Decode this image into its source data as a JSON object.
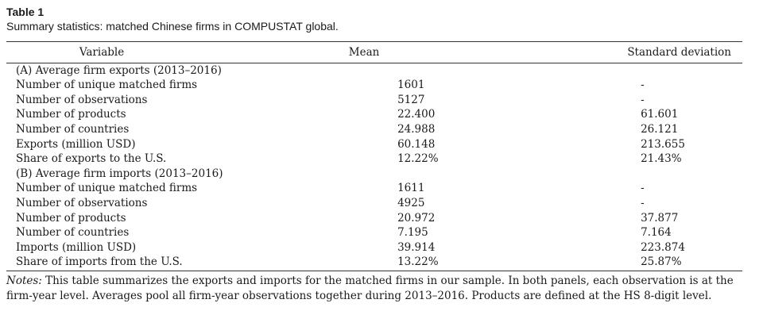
{
  "table": {
    "label": "Table 1",
    "caption": "Summary statistics: matched Chinese firms in COMPUSTAT global.",
    "headers": {
      "variable": "Variable",
      "mean": "Mean",
      "sd": "Standard deviation"
    },
    "rows": [
      {
        "variable": "(A) Average firm exports (2013–2016)",
        "mean": "",
        "sd": ""
      },
      {
        "variable": "Number of unique matched firms",
        "mean": "1601",
        "sd": "-"
      },
      {
        "variable": "Number of observations",
        "mean": "5127",
        "sd": "-"
      },
      {
        "variable": "Number of products",
        "mean": "22.400",
        "sd": "61.601"
      },
      {
        "variable": "Number of countries",
        "mean": "24.988",
        "sd": "26.121"
      },
      {
        "variable": "Exports (million USD)",
        "mean": "60.148",
        "sd": "213.655"
      },
      {
        "variable": "Share of exports to the U.S.",
        "mean": "12.22%",
        "sd": "21.43%"
      },
      {
        "variable": "(B) Average firm imports (2013–2016)",
        "mean": "",
        "sd": ""
      },
      {
        "variable": "Number of unique matched firms",
        "mean": "1611",
        "sd": "-"
      },
      {
        "variable": "Number of observations",
        "mean": "4925",
        "sd": "-"
      },
      {
        "variable": "Number of products",
        "mean": "20.972",
        "sd": "37.877"
      },
      {
        "variable": "Number of countries",
        "mean": "7.195",
        "sd": "7.164"
      },
      {
        "variable": "Imports (million USD)",
        "mean": "39.914",
        "sd": "223.874"
      },
      {
        "variable": "Share of imports from the U.S.",
        "mean": "13.22%",
        "sd": "25.87%"
      }
    ],
    "notes_label": "Notes:",
    "notes_text": " This table summarizes the exports and imports for the matched firms in our sample. In both panels, each observation is at the firm-year level. Averages pool all firm-year observations together during 2013–2016. Products are defined at the HS 8-digit level."
  }
}
